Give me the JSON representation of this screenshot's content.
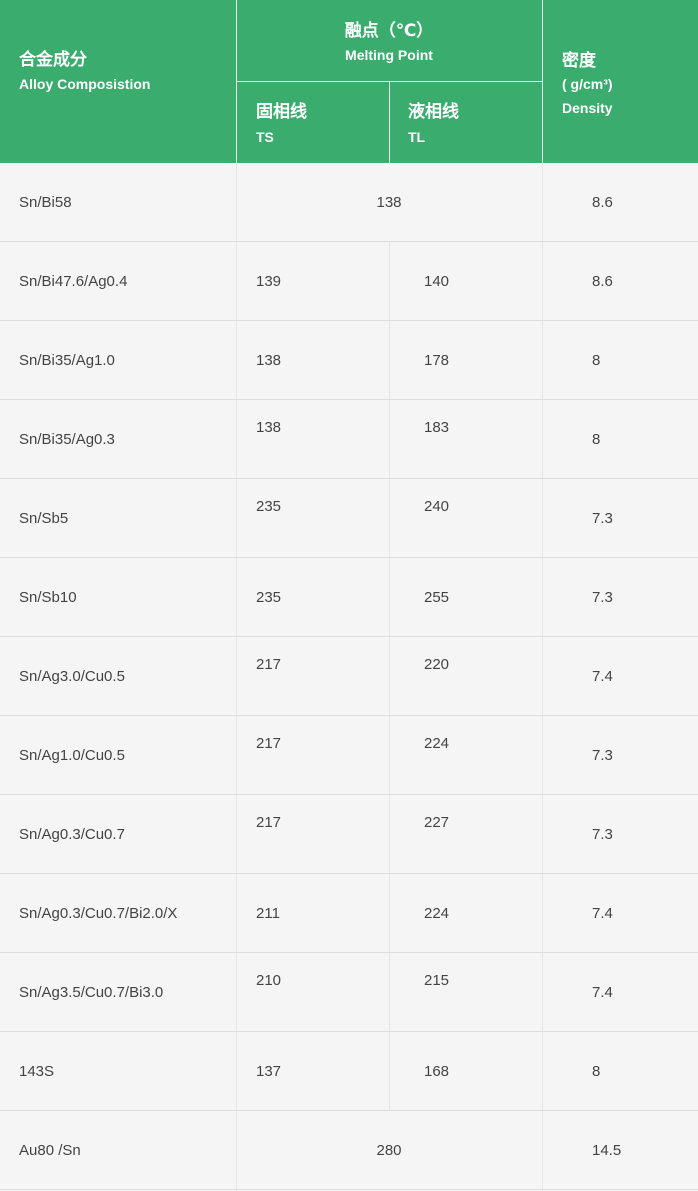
{
  "header": {
    "alloy_cn": "合金成分",
    "alloy_en": "Alloy Composistion",
    "melting_cn": "融点（℃）",
    "melting_en": "Melting Point",
    "ts_cn": "固相线",
    "ts_en": "TS",
    "tl_cn": "液相线",
    "tl_en": "TL",
    "density_cn": "密度",
    "density_unit": "( g/cm³)",
    "density_en": "Density"
  },
  "colors": {
    "header_bg": "#3aac6e",
    "body_bg": "#f5f5f5",
    "border": "#dedede"
  },
  "rows": [
    {
      "alloy": "Sn/Bi58",
      "merged": "138",
      "density": "8.6"
    },
    {
      "alloy": "Sn/Bi47.6/Ag0.4",
      "ts": "139",
      "tl": "140",
      "density": "8.6"
    },
    {
      "alloy": "Sn/Bi35/Ag1.0",
      "ts": "138",
      "tl": "178",
      "density": "8"
    },
    {
      "alloy": "Sn/Bi35/Ag0.3",
      "ts": "138",
      "tl": "183",
      "density": "8"
    },
    {
      "alloy": "Sn/Sb5",
      "ts": "235",
      "tl": "240",
      "density": "7.3"
    },
    {
      "alloy": "Sn/Sb10",
      "ts": "235",
      "tl": "255",
      "density": "7.3"
    },
    {
      "alloy": "Sn/Ag3.0/Cu0.5",
      "ts": "217",
      "tl": "220",
      "density": "7.4"
    },
    {
      "alloy": "Sn/Ag1.0/Cu0.5",
      "ts": "217",
      "tl": "224",
      "density": "7.3"
    },
    {
      "alloy": "Sn/Ag0.3/Cu0.7",
      "ts": "217",
      "tl": "227",
      "density": "7.3"
    },
    {
      "alloy": "Sn/Ag0.3/Cu0.7/Bi2.0/X",
      "ts": "211",
      "tl": "224",
      "density": "7.4"
    },
    {
      "alloy": "Sn/Ag3.5/Cu0.7/Bi3.0",
      "ts": "210",
      "tl": "215",
      "density": "7.4"
    },
    {
      "alloy": "143S",
      "ts": "137",
      "tl": "168",
      "density": "8"
    },
    {
      "alloy": "Au80 /Sn",
      "merged": "280",
      "density": "14.5"
    }
  ]
}
